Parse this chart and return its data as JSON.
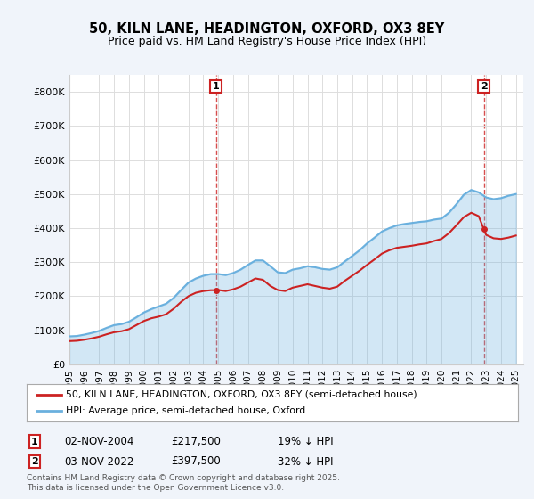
{
  "title": "50, KILN LANE, HEADINGTON, OXFORD, OX3 8EY",
  "subtitle": "Price paid vs. HM Land Registry's House Price Index (HPI)",
  "title_fontsize": 11,
  "subtitle_fontsize": 9,
  "ylabel": "",
  "ylim": [
    0,
    850000
  ],
  "yticks": [
    0,
    100000,
    200000,
    300000,
    400000,
    500000,
    600000,
    700000,
    800000
  ],
  "ytick_labels": [
    "£0",
    "£100K",
    "£200K",
    "£300K",
    "£400K",
    "£500K",
    "£600K",
    "£700K",
    "£800K"
  ],
  "hpi_color": "#6ab0de",
  "price_color": "#cc2222",
  "marker_color_1": "#cc2222",
  "marker_color_2": "#cc2222",
  "grid_color": "#dddddd",
  "bg_color": "#f0f4fa",
  "plot_bg": "#ffffff",
  "sale1_x": 2004.84,
  "sale1_y": 217500,
  "sale1_label": "1",
  "sale2_x": 2022.84,
  "sale2_y": 397500,
  "sale2_label": "2",
  "legend_label_price": "50, KILN LANE, HEADINGTON, OXFORD, OX3 8EY (semi-detached house)",
  "legend_label_hpi": "HPI: Average price, semi-detached house, Oxford",
  "annotation1": "1    02-NOV-2004         £217,500         19% ↓ HPI",
  "annotation2": "2    03-NOV-2022         £397,500         32% ↓ HPI",
  "footer": "Contains HM Land Registry data © Crown copyright and database right 2025.\nThis data is licensed under the Open Government Licence v3.0.",
  "xmin": 1995,
  "xmax": 2025.5
}
